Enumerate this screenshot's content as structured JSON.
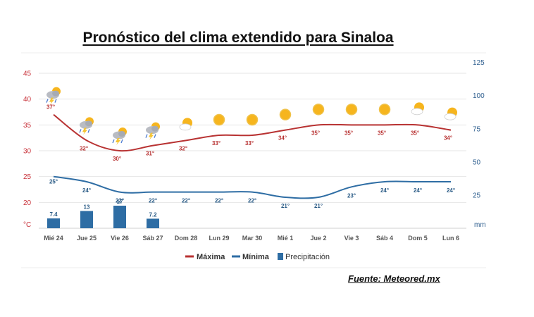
{
  "title": "Pronóstico del clima extendido para Sinaloa",
  "source": "Fuente: Meteored.mx",
  "colors": {
    "max": "#b83232",
    "min": "#2e6da4",
    "precip": "#2e6da4",
    "grid": "#e6e6e6"
  },
  "chart_data": {
    "type": "line",
    "categories": [
      "Mié 24",
      "Jue 25",
      "Vie 26",
      "Sáb 27",
      "Dom 28",
      "Lun 29",
      "Mar 30",
      "Mié 1",
      "Jue 2",
      "Vie 3",
      "Sáb 4",
      "Dom 5",
      "Lun 6"
    ],
    "weather_icons": [
      "storm-icon",
      "storm-icon",
      "storm-icon",
      "storm-icon",
      "partly-cloudy-icon",
      "sun-icon",
      "sun-icon",
      "sun-icon",
      "sun-icon",
      "sun-icon",
      "sun-icon",
      "partly-cloudy-icon",
      "partly-cloudy-icon"
    ],
    "series": [
      {
        "name": "Máxima",
        "values": [
          37,
          32,
          30,
          31,
          32,
          33,
          33,
          34,
          35,
          35,
          35,
          35,
          34
        ],
        "labels": [
          "37°",
          "32°",
          "30°",
          "31°",
          "32°",
          "33°",
          "33°",
          "34°",
          "35°",
          "35°",
          "35°",
          "35°",
          "34°"
        ]
      },
      {
        "name": "Mínima",
        "values": [
          25,
          24,
          22,
          22,
          22,
          22,
          22,
          21,
          21,
          23,
          24,
          24,
          24
        ],
        "labels": [
          "25°",
          "24°",
          "22°",
          "22°",
          "22°",
          "22°",
          "22°",
          "21°",
          "21°",
          "23°",
          "24°",
          "24°",
          "24°"
        ]
      },
      {
        "name": "Precipitación",
        "values": [
          7.4,
          13,
          17,
          7.2,
          null,
          null,
          null,
          null,
          null,
          null,
          null,
          null,
          null
        ],
        "labels": [
          "7.4",
          "13",
          "17",
          "7.2",
          "",
          "",
          "",
          "",
          "",
          "",
          "",
          "",
          ""
        ]
      }
    ],
    "y_left": {
      "unit": "°C",
      "ticks": [
        "45",
        "40",
        "35",
        "30",
        "25",
        "20"
      ],
      "ylim": [
        15,
        45
      ]
    },
    "y_right": {
      "unit": "mm",
      "ticks": [
        "125",
        "100",
        "75",
        "50",
        "25"
      ],
      "ylim": [
        0,
        125
      ]
    },
    "legend": [
      "Máxima",
      "Mínima",
      "Precipitación"
    ],
    "grid": true,
    "legend_position": "bottom"
  }
}
